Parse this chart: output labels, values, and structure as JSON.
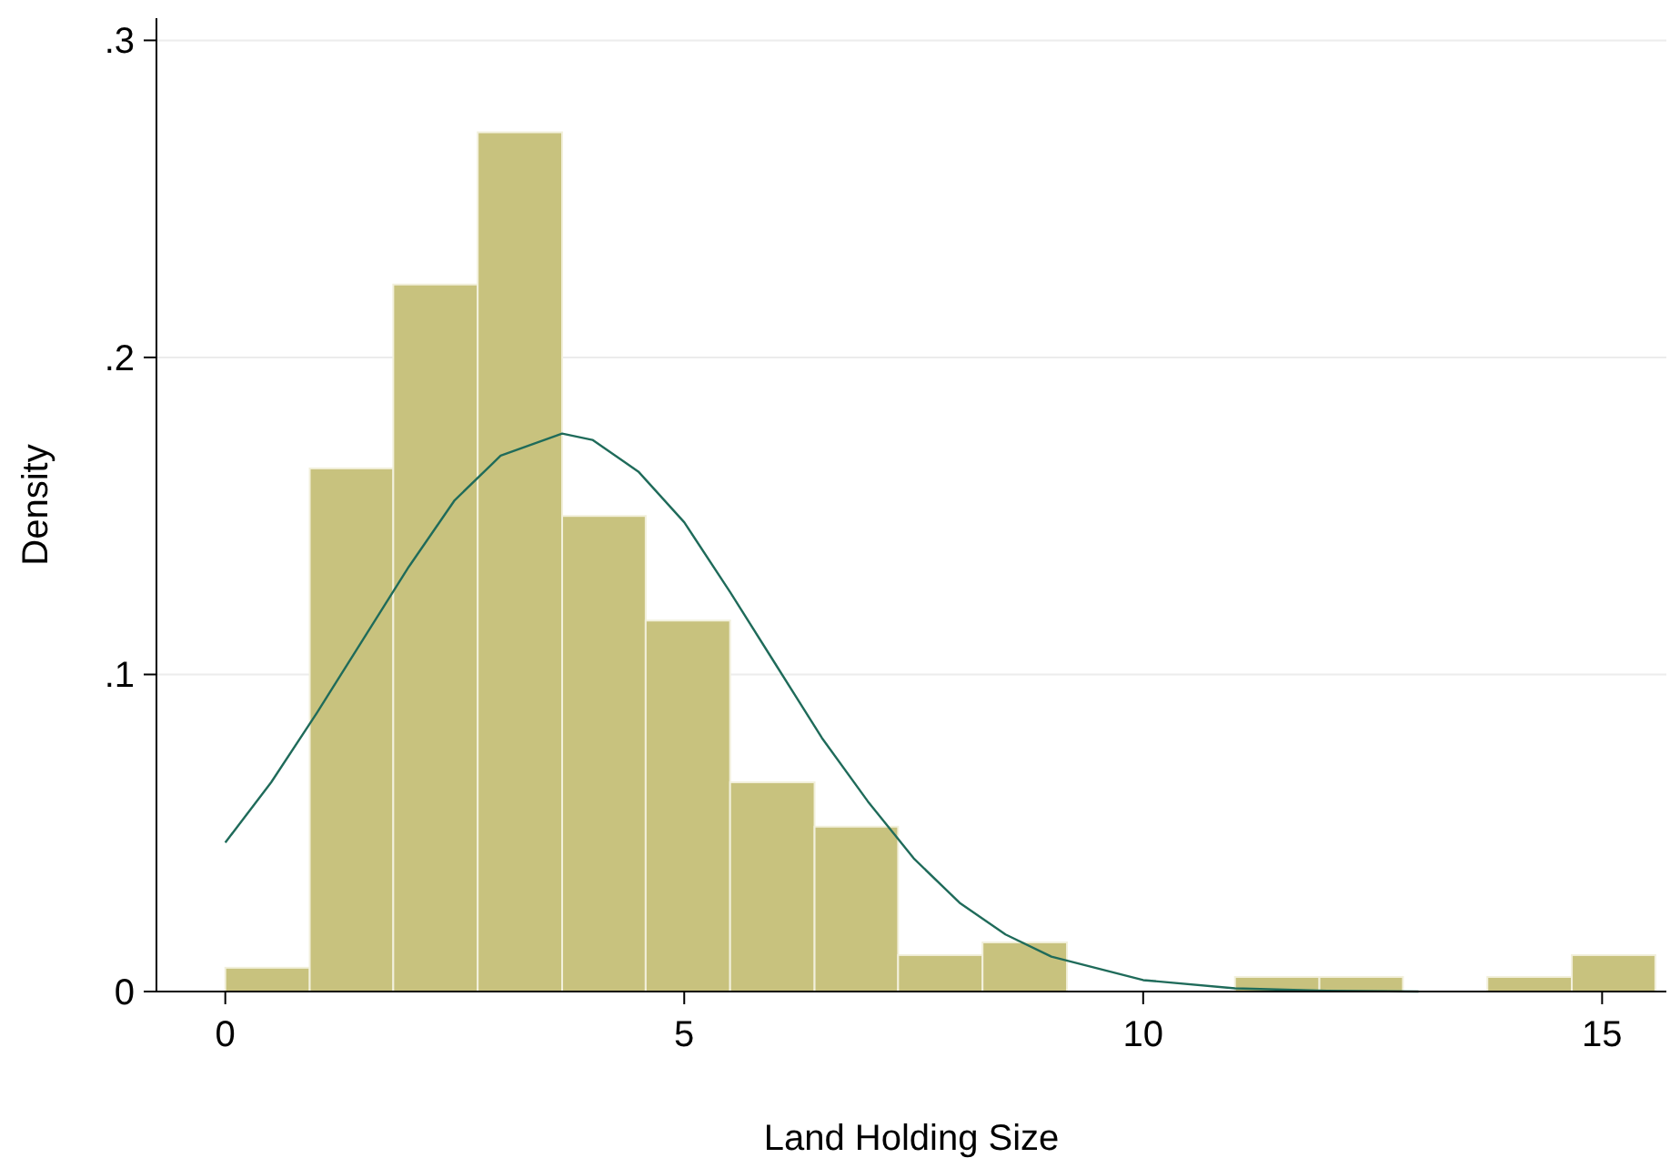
{
  "chart_data": {
    "type": "histogram",
    "xlabel": "Land Holding Size",
    "ylabel": "Density",
    "bins": [
      0,
      0.92,
      1.83,
      2.75,
      3.67,
      4.58,
      5.5,
      6.42,
      7.33,
      8.25,
      9.17,
      11.0,
      11.92,
      12.83,
      13.75,
      14.67,
      15.58
    ],
    "values": [
      0.0075,
      0.165,
      0.223,
      0.271,
      0.15,
      0.117,
      0.066,
      0.052,
      0.0115,
      0.0155,
      0,
      0.0046,
      0.0046,
      0,
      0.0046,
      0.0115
    ],
    "color": "#c8c27e",
    "series": [
      {
        "type": "line",
        "color": "#1f6b5a",
        "x": [
          0,
          0.5,
          1,
          1.5,
          2,
          2.5,
          3,
          3.67,
          4,
          4.5,
          5,
          5.5,
          6,
          6.5,
          7,
          7.5,
          8,
          8.5,
          9,
          10,
          11,
          12,
          13
        ],
        "values": [
          0.047,
          0.066,
          0.088,
          0.111,
          0.134,
          0.155,
          0.169,
          0.176,
          0.174,
          0.164,
          0.148,
          0.126,
          0.103,
          0.08,
          0.06,
          0.042,
          0.028,
          0.018,
          0.011,
          0.0036,
          0.001,
          0.0002,
          0
        ]
      }
    ],
    "xlim": [
      -0.75,
      15.7
    ],
    "ylim": [
      0,
      0.307
    ],
    "xticks": [
      0,
      5,
      10,
      15
    ],
    "yticks": [
      0,
      {
        "value": 0.1,
        "label": ".1"
      },
      {
        "value": 0.2,
        "label": ".2"
      },
      {
        "value": 0.3,
        "label": ".3"
      }
    ],
    "grid": "y"
  }
}
